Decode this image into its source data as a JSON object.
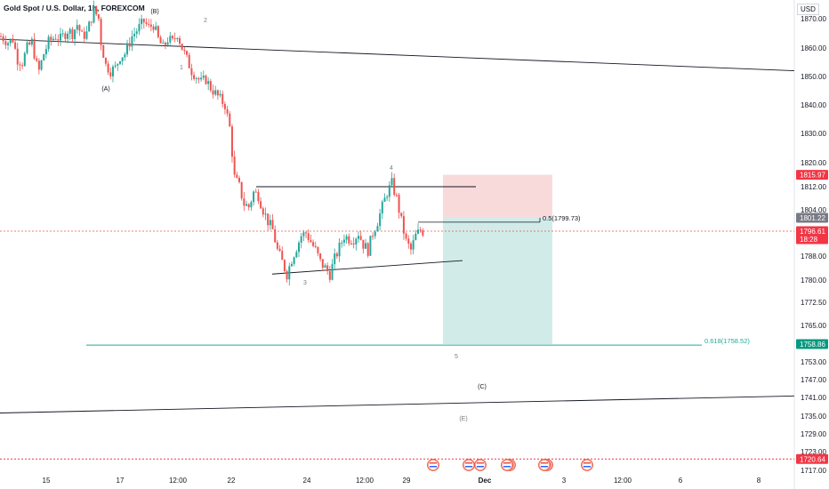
{
  "chart_title": "Gold Spot / U.S. Dollar, 1h, FOREXCOM",
  "currency": "USD",
  "colors": {
    "up": "#26a69a",
    "down": "#ef5350",
    "trendline": "#131722",
    "fib_line": "#22ab94",
    "risk_zone": "#f8d3d3",
    "reward_zone": "#cfebe7",
    "current_price_line": "#ef5350",
    "low_marker": "#f23645"
  },
  "chart_data": {
    "type": "candlestick",
    "symbol": "Gold Spot / U.S. Dollar",
    "interval": "1h",
    "y_axis": {
      "ticks": [
        1870,
        1860,
        1850,
        1840,
        1830,
        1820,
        1812,
        1804,
        1788,
        1780,
        1772.5,
        1765,
        1753,
        1747,
        1741,
        1735,
        1729,
        1723,
        1717
      ],
      "tick_labels": [
        "1870.00",
        "1860.00",
        "1850.00",
        "1840.00",
        "1830.00",
        "1820.00",
        "1812.00",
        "1804.00",
        "1788.00",
        "1780.00",
        "1772.50",
        "1765.00",
        "1753.00",
        "1747.00",
        "1741.00",
        "1735.00",
        "1729.00",
        "1723.00",
        "1717.00"
      ],
      "range": [
        1714,
        1875
      ],
      "label_formats": "2 decimals"
    },
    "x_axis": {
      "tick_labels": [
        "15",
        "17",
        "12:00",
        "22",
        "24",
        "12:00",
        "29",
        "Dec",
        "3",
        "12:00",
        "6",
        "8"
      ],
      "bold": [
        "Dec"
      ]
    },
    "price_labels": [
      {
        "label": "1815.97",
        "value": 1815.97,
        "style": "risk"
      },
      {
        "label": "1801.22",
        "value": 1801.22,
        "style": "entry"
      },
      {
        "label": "1796.61",
        "sub": "18:28",
        "value": 1796.61,
        "style": "current"
      },
      {
        "label": "1758.86",
        "value": 1758.86,
        "style": "target"
      },
      {
        "label": "1720.64",
        "value": 1720.64,
        "style": "low"
      }
    ],
    "annotations": {
      "wave_labels": [
        "(B)",
        "2",
        "1",
        "(A)",
        "4",
        "3",
        "5",
        "(C)",
        "(E)"
      ],
      "fib_labels": [
        {
          "text": "0.5(1799.73)",
          "value": 1799.73
        },
        {
          "text": "0.618(1758.52)",
          "value": 1758.52
        }
      ]
    },
    "position": {
      "type": "long",
      "entry": 1801.22,
      "stop": 1815.97,
      "target": 1758.86
    },
    "price_path": [
      [
        0,
        1864
      ],
      [
        3,
        1862
      ],
      [
        5,
        1863
      ],
      [
        7,
        1856
      ],
      [
        9,
        1855
      ],
      [
        11,
        1860
      ],
      [
        13,
        1862
      ],
      [
        15,
        1854
      ],
      [
        16,
        1852
      ],
      [
        18,
        1858
      ],
      [
        20,
        1862
      ],
      [
        23,
        1864
      ],
      [
        25,
        1863
      ],
      [
        28,
        1866
      ],
      [
        30,
        1865
      ],
      [
        32,
        1868
      ],
      [
        34,
        1864
      ],
      [
        36,
        1865
      ],
      [
        39,
        1873
      ],
      [
        41,
        1870
      ],
      [
        42,
        1862
      ],
      [
        44,
        1854
      ],
      [
        46,
        1852
      ],
      [
        48,
        1853
      ],
      [
        50,
        1857
      ],
      [
        52,
        1858
      ],
      [
        55,
        1864
      ],
      [
        57,
        1866
      ],
      [
        60,
        1869
      ],
      [
        62,
        1867
      ],
      [
        64,
        1868
      ],
      [
        66,
        1863
      ],
      [
        68,
        1860
      ],
      [
        70,
        1863
      ],
      [
        72,
        1862
      ],
      [
        74,
        1865
      ],
      [
        76,
        1860
      ],
      [
        78,
        1856
      ],
      [
        80,
        1852
      ],
      [
        82,
        1850
      ],
      [
        84,
        1848
      ],
      [
        86,
        1849
      ],
      [
        88,
        1846
      ],
      [
        90,
        1844
      ],
      [
        92,
        1842
      ],
      [
        94,
        1840
      ],
      [
        96,
        1832
      ],
      [
        98,
        1815
      ],
      [
        100,
        1812
      ],
      [
        102,
        1806
      ],
      [
        104,
        1805
      ],
      [
        106,
        1810
      ],
      [
        108,
        1809
      ],
      [
        110,
        1804
      ],
      [
        112,
        1800
      ],
      [
        114,
        1797
      ],
      [
        116,
        1790
      ],
      [
        118,
        1786
      ],
      [
        120,
        1782
      ],
      [
        122,
        1787
      ],
      [
        124,
        1791
      ],
      [
        126,
        1795
      ],
      [
        128,
        1796
      ],
      [
        130,
        1793
      ],
      [
        132,
        1790
      ],
      [
        134,
        1786
      ],
      [
        136,
        1784
      ],
      [
        138,
        1782
      ],
      [
        140,
        1787
      ],
      [
        142,
        1791
      ],
      [
        144,
        1795
      ],
      [
        146,
        1794
      ],
      [
        148,
        1794
      ],
      [
        150,
        1796
      ],
      [
        152,
        1792
      ],
      [
        154,
        1790
      ],
      [
        156,
        1796
      ],
      [
        158,
        1800
      ],
      [
        160,
        1805
      ],
      [
        162,
        1810
      ],
      [
        164,
        1813
      ],
      [
        166,
        1808
      ],
      [
        168,
        1800
      ],
      [
        170,
        1793
      ],
      [
        172,
        1790
      ],
      [
        174,
        1795
      ],
      [
        176,
        1797
      ],
      [
        178,
        1796
      ]
    ]
  }
}
